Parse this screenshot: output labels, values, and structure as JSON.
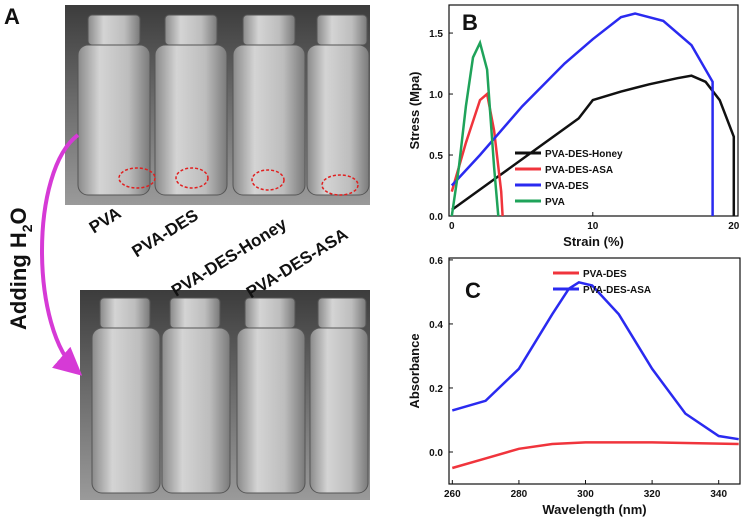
{
  "panel_a": {
    "label": "A",
    "adding_label": [
      "Adding H",
      "2",
      "O"
    ],
    "vials": [
      "PVA",
      "PVA-DES",
      "PVA-DES-Honey",
      "PVA-DES-ASA"
    ]
  },
  "chart_data": [
    {
      "type": "line",
      "label": "B",
      "xlabel": "Strain (%)",
      "ylabel": "Stress (Mpa)",
      "xlim": [
        -0.2,
        20.3
      ],
      "xticks": [
        0,
        10,
        20
      ],
      "ylim": [
        0,
        1.73
      ],
      "yticks": [
        {
          "value": 0,
          "label": "0.0"
        },
        {
          "value": 0.5,
          "label": "0.5"
        },
        {
          "value": 1.0,
          "label": "1.0"
        },
        {
          "value": 1.5,
          "label": "1.5"
        }
      ],
      "series": [
        {
          "name": "PVA-DES-Honey",
          "color": "#111111",
          "x": [
            0,
            3,
            6,
            9,
            10,
            12,
            14,
            16,
            17,
            18,
            19,
            20,
            20
          ],
          "values": [
            0.05,
            0.3,
            0.55,
            0.8,
            0.95,
            1.02,
            1.08,
            1.13,
            1.15,
            1.1,
            0.95,
            0.65,
            0
          ]
        },
        {
          "name": "PVA-DES-ASA",
          "color": "#f0343c",
          "x": [
            0,
            1,
            2,
            2.5,
            3,
            3.5,
            3.6
          ],
          "values": [
            0.2,
            0.6,
            0.95,
            1.0,
            0.7,
            0.2,
            0
          ]
        },
        {
          "name": "PVA-DES",
          "color": "#2a2af0",
          "x": [
            0,
            2,
            5,
            8,
            10,
            12,
            13,
            15,
            17,
            18.5,
            18.5
          ],
          "values": [
            0.25,
            0.5,
            0.9,
            1.25,
            1.45,
            1.63,
            1.66,
            1.6,
            1.4,
            1.1,
            0
          ]
        },
        {
          "name": "PVA",
          "color": "#1fa35a",
          "x": [
            0,
            0.5,
            1,
            1.5,
            2,
            2.5,
            3,
            3.3
          ],
          "values": [
            0,
            0.4,
            0.9,
            1.3,
            1.42,
            1.2,
            0.4,
            0
          ]
        }
      ]
    },
    {
      "type": "line",
      "label": "C",
      "xlabel": "Wavelength (nm)",
      "ylabel": "Absorbance",
      "xlim": [
        259,
        346.4
      ],
      "xticks": [
        260,
        280,
        300,
        320,
        340
      ],
      "ylim": [
        -0.1,
        0.606
      ],
      "yticks": [
        {
          "value": 0,
          "label": "0.0"
        },
        {
          "value": 0.2,
          "label": "0.2"
        },
        {
          "value": 0.4,
          "label": "0.4"
        },
        {
          "value": 0.6,
          "label": "0.6"
        }
      ],
      "series": [
        {
          "name": "PVA-DES",
          "color": "#f0343c",
          "x": [
            260,
            270,
            280,
            290,
            300,
            320,
            346
          ],
          "values": [
            -0.05,
            -0.02,
            0.01,
            0.025,
            0.03,
            0.03,
            0.025
          ]
        },
        {
          "name": "PVA-DES-ASA",
          "color": "#2a2af0",
          "x": [
            260,
            270,
            280,
            290,
            295,
            298,
            302,
            310,
            320,
            330,
            340,
            346
          ],
          "values": [
            0.13,
            0.16,
            0.26,
            0.43,
            0.51,
            0.53,
            0.52,
            0.43,
            0.26,
            0.12,
            0.05,
            0.04
          ]
        }
      ]
    }
  ]
}
